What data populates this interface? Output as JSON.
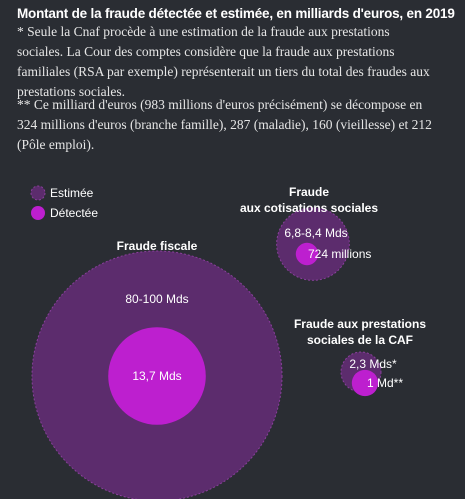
{
  "title": "Montant de la fraude détectée et estimée, en milliards d'euros, en 2019",
  "notes": {
    "note1": "* Seule la Cnaf procède à une estimation de la fraude aux prestations sociales. La Cour des comptes considère que la fraude aux prestations familiales (RSA par exemple) représenterait un tiers du total des fraudes aux prestations sociales.",
    "note2": "** Ce milliard d'euros (983 millions d'euros précisément) se décompose en 324 millions d'euros (branche famille), 287 (maladie), 160 (vieillesse) et 212 (Pôle emploi)."
  },
  "colors": {
    "background": "#2a2d33",
    "estimated_fill": "#5c2c6d",
    "estimated_stroke": "#8a3f9c",
    "detected_fill": "#bd1fcf"
  },
  "chart_data": {
    "type": "bubble",
    "title": "Montant de la fraude détectée et estimée, en milliards d'euros, en 2019",
    "legend": {
      "placement": "top-left",
      "items": [
        {
          "label": "Estimée",
          "style": "estimated"
        },
        {
          "label": "Détectée",
          "style": "detected"
        }
      ]
    },
    "groups": [
      {
        "name": "Fraude fiscale",
        "name_lines": [
          "Fraude fiscale"
        ],
        "estimated": {
          "value": 90,
          "label": "80-100 Mds"
        },
        "detected": {
          "value": 13.7,
          "label": "13,7 Mds"
        }
      },
      {
        "name": "Fraude aux cotisations sociales",
        "name_lines": [
          "Fraude",
          "aux cotisations sociales"
        ],
        "estimated": {
          "value": 7.6,
          "label": "6,8-8,4 Mds"
        },
        "detected": {
          "value": 0.724,
          "label": "724 millions"
        }
      },
      {
        "name": "Fraude aux prestations sociales de la CAF",
        "name_lines": [
          "Fraude aux prestations",
          "sociales de la CAF"
        ],
        "estimated": {
          "value": 2.3,
          "label": "2,3 Mds*"
        },
        "detected": {
          "value": 1,
          "label": "1 Md**"
        }
      }
    ]
  }
}
